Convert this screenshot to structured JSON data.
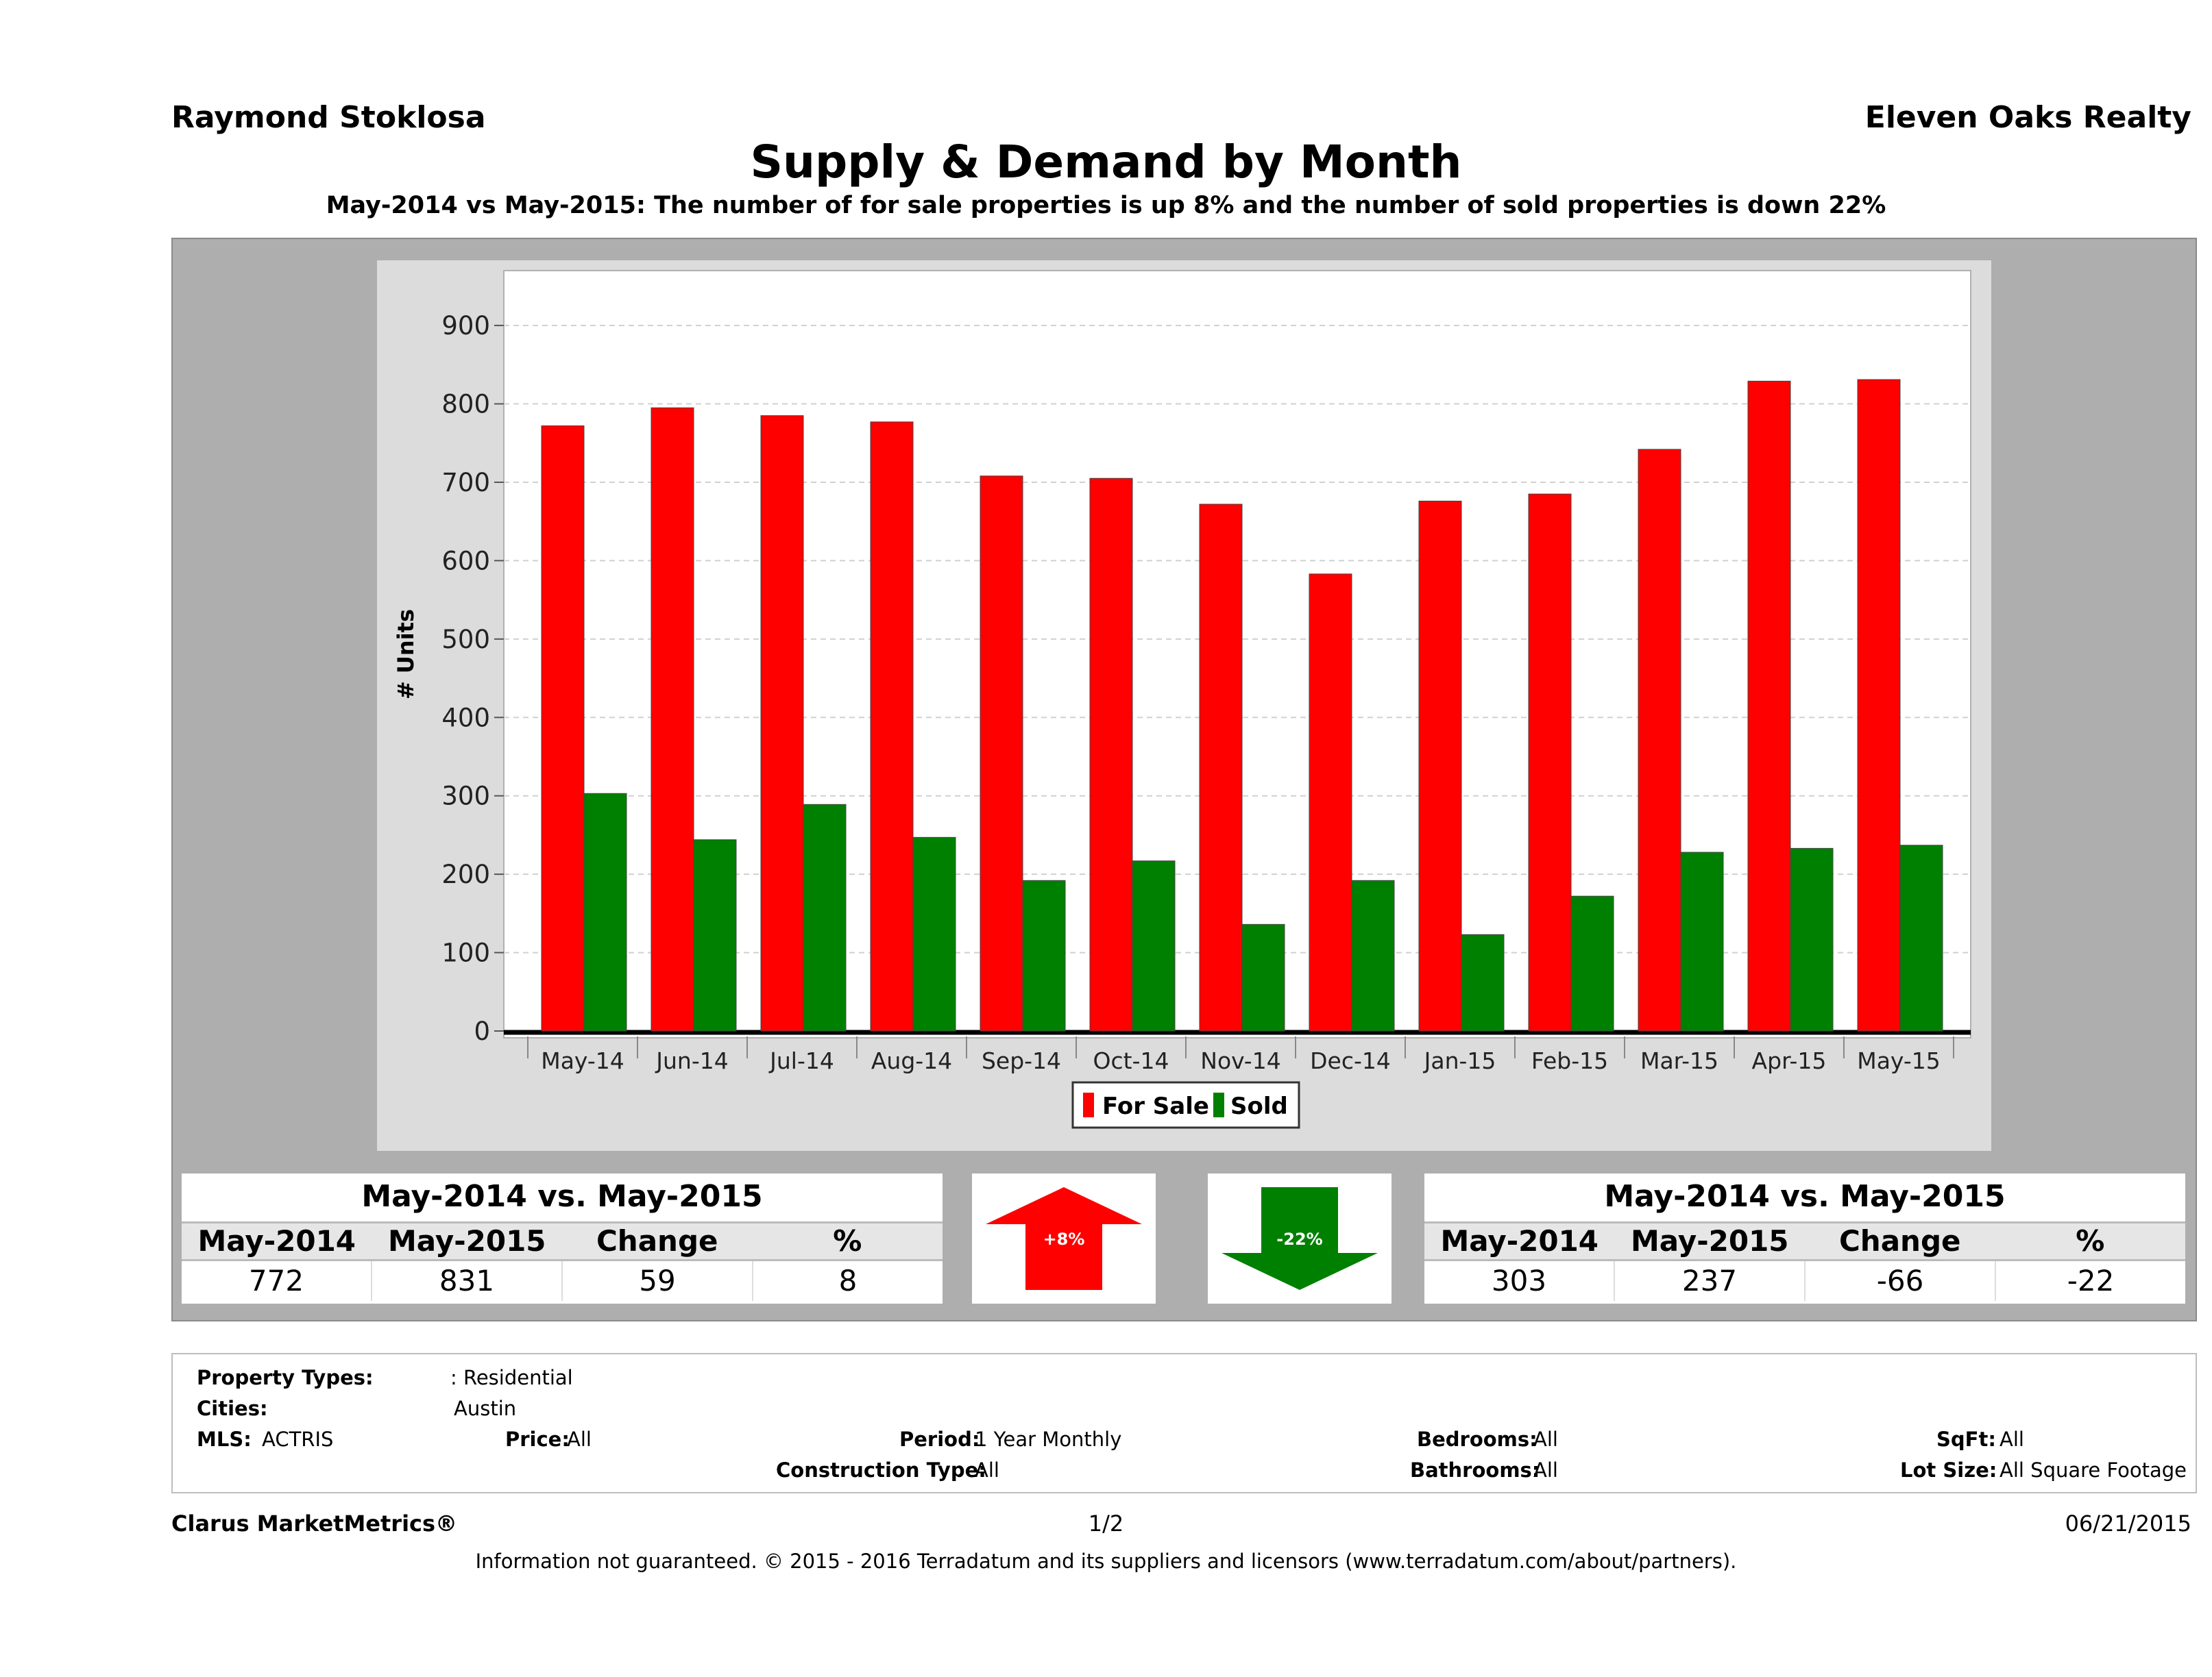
{
  "header": {
    "agent": "Raymond Stoklosa",
    "brokerage": "Eleven Oaks Realty"
  },
  "chart_data": {
    "type": "bar",
    "title": "Supply & Demand by Month",
    "subtitle": "May-2014 vs May-2015: The number of for sale properties is up 8% and the number of sold properties is down 22%",
    "categories": [
      "May-14",
      "Jun-14",
      "Jul-14",
      "Aug-14",
      "Sep-14",
      "Oct-14",
      "Nov-14",
      "Dec-14",
      "Jan-15",
      "Feb-15",
      "Mar-15",
      "Apr-15",
      "May-15"
    ],
    "series": [
      {
        "name": "For Sale",
        "color": "#ff0000",
        "values": [
          772,
          795,
          785,
          777,
          708,
          705,
          672,
          583,
          676,
          685,
          742,
          829,
          831
        ]
      },
      {
        "name": "Sold",
        "color": "#008000",
        "values": [
          303,
          244,
          289,
          247,
          192,
          217,
          136,
          192,
          123,
          172,
          228,
          233,
          237
        ]
      }
    ],
    "xlabel": "",
    "ylabel": "# Units",
    "ylim": [
      0,
      970
    ],
    "yticks": [
      0,
      100,
      200,
      300,
      400,
      500,
      600,
      700,
      800,
      900
    ],
    "grid": true,
    "legend_position": "bottom"
  },
  "for_sale_summary": {
    "title": "May-2014 vs. May-2015",
    "headers": [
      "May-2014",
      "May-2015",
      "Change",
      "%"
    ],
    "values": [
      "772",
      "831",
      "59",
      "8"
    ],
    "arrow_label": "+8%",
    "arrow_color": "#ff0000"
  },
  "sold_summary": {
    "title": "May-2014 vs. May-2015",
    "headers": [
      "May-2014",
      "May-2015",
      "Change",
      "%"
    ],
    "values": [
      "303",
      "237",
      "-66",
      "-22"
    ],
    "arrow_label": "-22%",
    "arrow_color": "#008000"
  },
  "filters": {
    "property_types_label": "Property Types:",
    "property_types_value": ": Residential",
    "cities_label": "Cities:",
    "cities_value": "Austin",
    "mls_label": "MLS:",
    "mls_value": "ACTRIS",
    "price_label": "Price:",
    "price_value": "All",
    "period_label": "Period:",
    "period_value": "1 Year Monthly",
    "construction_label": "Construction Type:",
    "construction_value": "All",
    "bedrooms_label": "Bedrooms:",
    "bedrooms_value": "All",
    "bathrooms_label": "Bathrooms:",
    "bathrooms_value": "All",
    "sqft_label": "SqFt:",
    "sqft_value": "All",
    "lotsize_label": "Lot Size:",
    "lotsize_value": "All Square Footage"
  },
  "footer": {
    "brand": "Clarus MarketMetrics®",
    "page": "1/2",
    "date": "06/21/2015",
    "disclaimer": "Information not guaranteed. © 2015 - 2016 Terradatum and its suppliers and licensors (www.terradatum.com/about/partners)."
  }
}
